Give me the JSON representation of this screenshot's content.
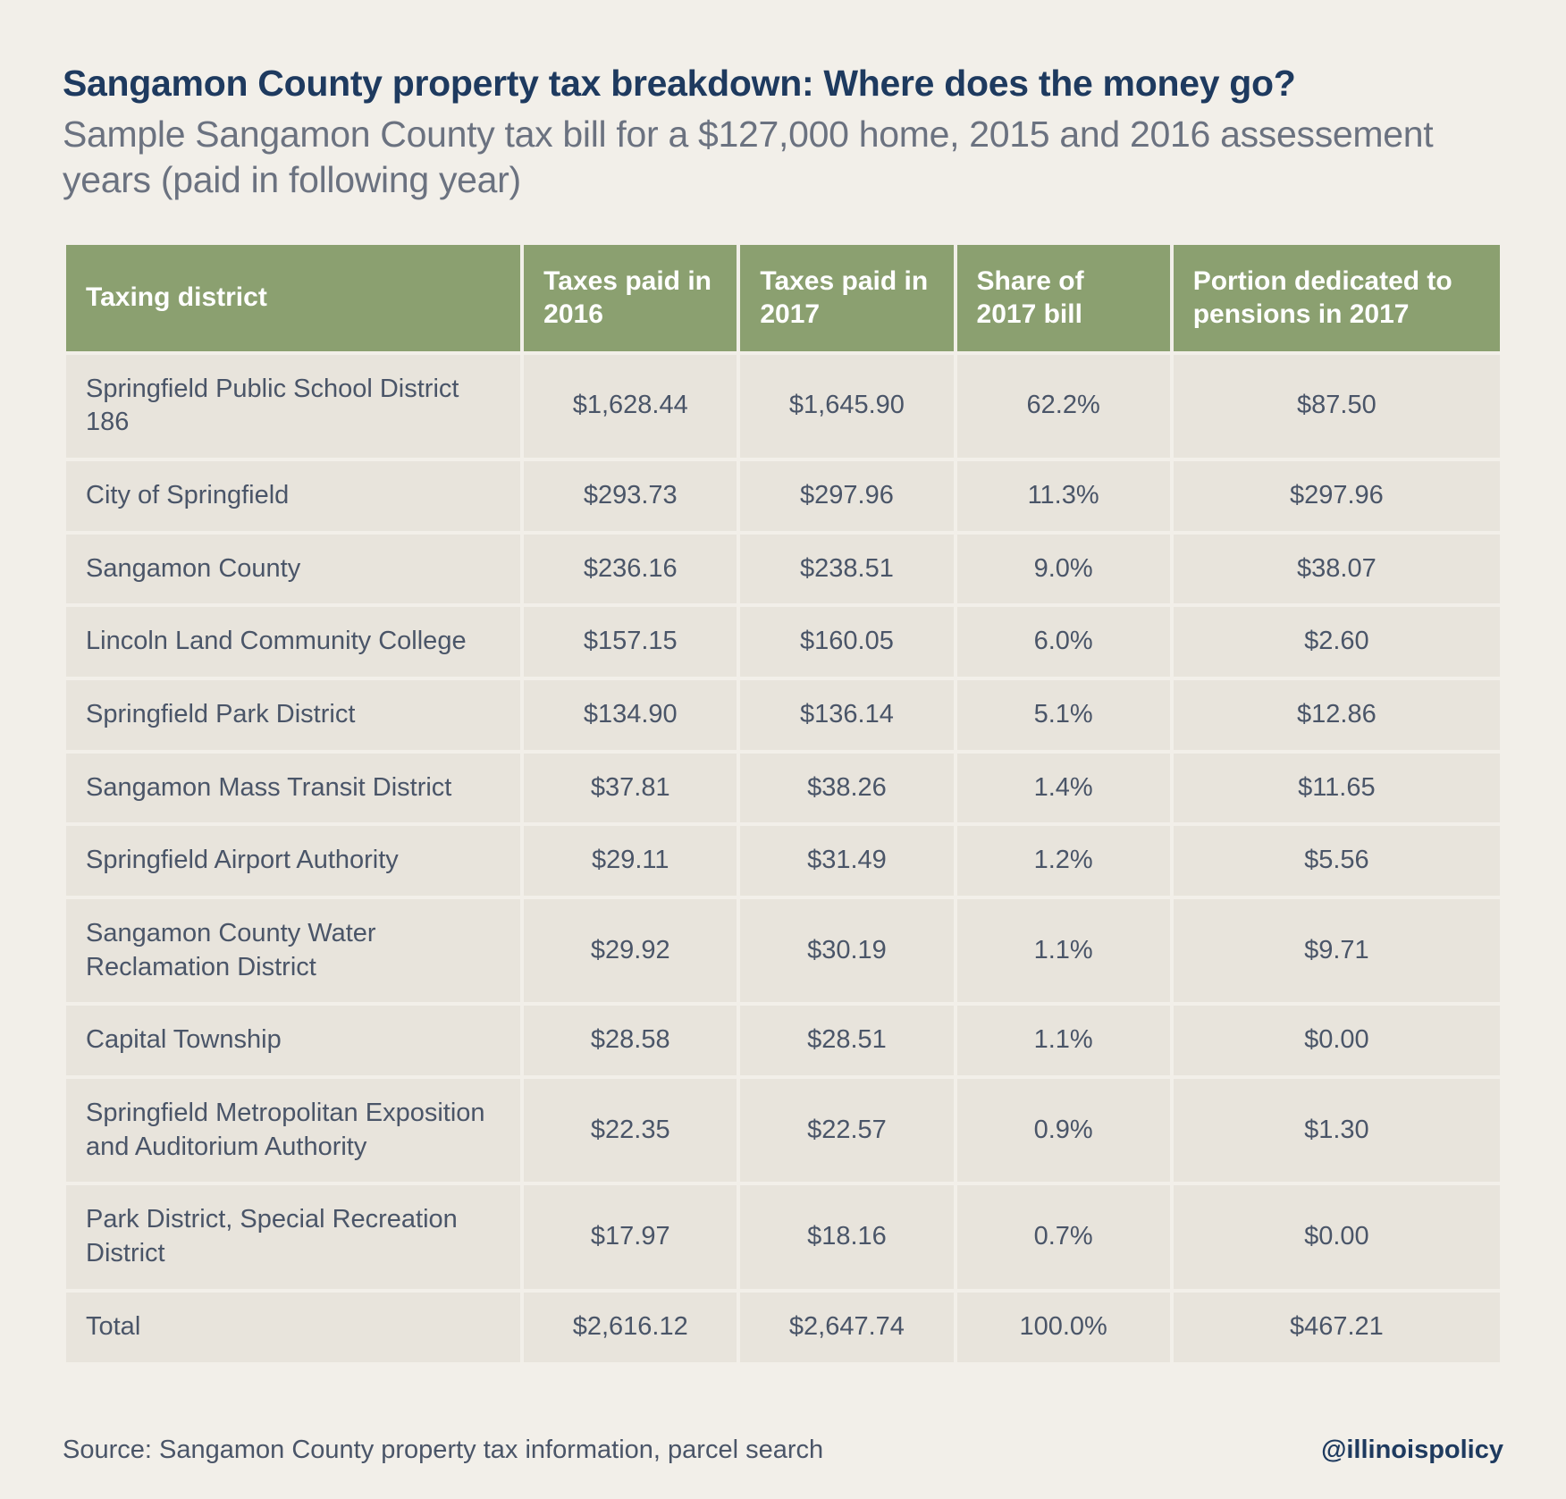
{
  "header": {
    "title": "Sangamon County property tax breakdown: Where does the money go?",
    "subtitle": "Sample Sangamon County tax bill for a $127,000 home, 2015 and 2016 assessement years (paid in following year)"
  },
  "table": {
    "columns": [
      "Taxing district",
      "Taxes paid in 2016",
      "Taxes paid in 2017",
      "Share of 2017 bill",
      "Portion dedicated to pensions in 2017"
    ],
    "rows": [
      {
        "district": "Springfield Public School District 186",
        "paid2016": "$1,628.44",
        "paid2017": "$1,645.90",
        "share": "62.2%",
        "pension": "$87.50"
      },
      {
        "district": "City of Springfield",
        "paid2016": "$293.73",
        "paid2017": "$297.96",
        "share": "11.3%",
        "pension": "$297.96"
      },
      {
        "district": "Sangamon County",
        "paid2016": "$236.16",
        "paid2017": "$238.51",
        "share": "9.0%",
        "pension": "$38.07"
      },
      {
        "district": "Lincoln Land Community College",
        "paid2016": "$157.15",
        "paid2017": "$160.05",
        "share": "6.0%",
        "pension": "$2.60"
      },
      {
        "district": "Springfield Park District",
        "paid2016": "$134.90",
        "paid2017": "$136.14",
        "share": "5.1%",
        "pension": "$12.86"
      },
      {
        "district": "Sangamon Mass Transit District",
        "paid2016": "$37.81",
        "paid2017": "$38.26",
        "share": "1.4%",
        "pension": "$11.65"
      },
      {
        "district": "Springfield Airport Authority",
        "paid2016": "$29.11",
        "paid2017": "$31.49",
        "share": "1.2%",
        "pension": "$5.56"
      },
      {
        "district": "Sangamon County Water Reclamation District",
        "paid2016": "$29.92",
        "paid2017": "$30.19",
        "share": "1.1%",
        "pension": "$9.71"
      },
      {
        "district": "Capital Township",
        "paid2016": "$28.58",
        "paid2017": "$28.51",
        "share": "1.1%",
        "pension": "$0.00"
      },
      {
        "district": "Springfield Metropolitan Exposition and Auditorium Authority",
        "paid2016": "$22.35",
        "paid2017": "$22.57",
        "share": "0.9%",
        "pension": "$1.30"
      },
      {
        "district": "Park District, Special Recreation District",
        "paid2016": "$17.97",
        "paid2017": "$18.16",
        "share": "0.7%",
        "pension": "$0.00"
      },
      {
        "district": "Total",
        "paid2016": "$2,616.12",
        "paid2017": "$2,647.74",
        "share": "100.0%",
        "pension": "$467.21"
      }
    ]
  },
  "footer": {
    "source": "Source: Sangamon County property tax information, parcel search",
    "handle": "@illinoispolicy"
  },
  "style": {
    "background_color": "#f2efe9",
    "header_text_color": "#1e3a5f",
    "subtitle_text_color": "#6b7280",
    "table_header_bg": "#8ba070",
    "table_header_text": "#ffffff",
    "row_bg": "#e8e4dc",
    "row_text": "#4a5568",
    "title_fontsize": 41,
    "subtitle_fontsize": 41,
    "th_fontsize": 30,
    "td_fontsize": 29,
    "footer_fontsize": 29
  }
}
